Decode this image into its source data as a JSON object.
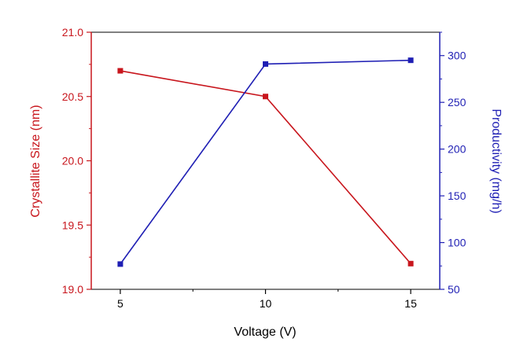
{
  "chart_data": {
    "type": "line",
    "title": "",
    "xlabel": "Voltage (V)",
    "ylabel_left": "Crystallite Size (nm)",
    "ylabel_right": "Productivity (mg/h)",
    "x": [
      5,
      10,
      15
    ],
    "xlim": [
      4,
      16
    ],
    "x_ticks": [
      "5",
      "10",
      "15"
    ],
    "ylim_left": [
      19.0,
      21.0
    ],
    "y_ticks_left": [
      "19.0",
      "19.5",
      "20.0",
      "20.5",
      "21.0"
    ],
    "ylim_right": [
      50,
      325
    ],
    "y_ticks_right": [
      "50",
      "100",
      "150",
      "200",
      "250",
      "300"
    ],
    "grid": false,
    "legend": "none",
    "series": [
      {
        "axis": "left",
        "color": "#c8161d",
        "marker": "square",
        "values": [
          20.7,
          20.5,
          19.2
        ]
      },
      {
        "axis": "right",
        "color": "#1f1fb4",
        "marker": "square",
        "values": [
          77,
          291,
          295
        ]
      }
    ]
  }
}
